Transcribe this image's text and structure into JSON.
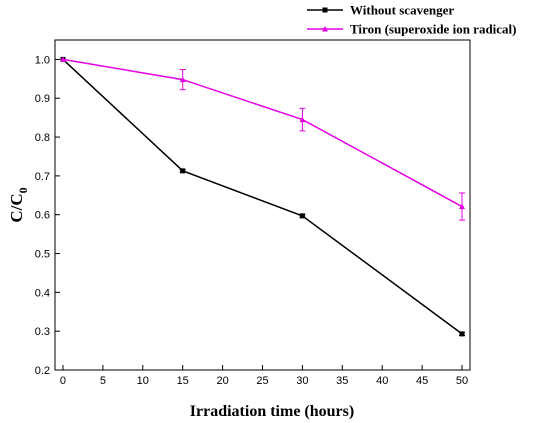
{
  "chart_data": {
    "type": "line",
    "xlabel": "Irradiation time (hours)",
    "ylabel_main": "C/C",
    "ylabel_sub": "0",
    "xlim": [
      -1,
      51
    ],
    "ylim": [
      0.2,
      1.05
    ],
    "x_ticks": [
      0,
      5,
      10,
      15,
      20,
      25,
      30,
      35,
      40,
      45,
      50
    ],
    "y_ticks": [
      0.2,
      0.3,
      0.4,
      0.5,
      0.6,
      0.7,
      0.8,
      0.9,
      1.0
    ],
    "y_tick_labels": [
      "0.2",
      "0.3",
      "0.4",
      "0.5",
      "0.6",
      "0.7",
      "0.8",
      "0.9",
      "1.0"
    ],
    "grid": false,
    "legend_position": "top-right, outside plot",
    "series": [
      {
        "name": "Without scavenger",
        "color": "#000000",
        "marker": "square",
        "x": [
          0,
          15,
          30,
          50
        ],
        "y": [
          1.0,
          0.713,
          0.597,
          0.293
        ],
        "err": [
          0,
          0.003,
          0.004,
          0.004
        ]
      },
      {
        "name": "Tiron (superoxide ion radical)",
        "color": "#e600e6",
        "marker": "triangle",
        "x": [
          0,
          15,
          30,
          50
        ],
        "y": [
          1.0,
          0.948,
          0.845,
          0.621
        ],
        "err": [
          0,
          0.026,
          0.029,
          0.035
        ]
      }
    ]
  }
}
